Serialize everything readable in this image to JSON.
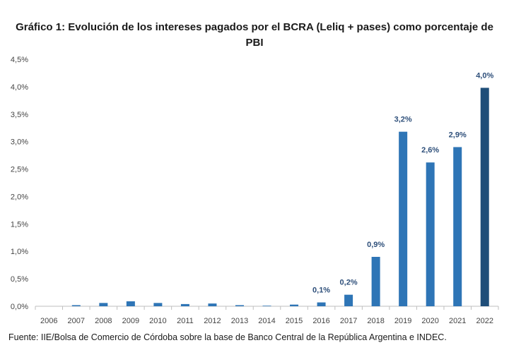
{
  "title_line1": "Gráfico 1: Evolución de los intereses pagados por el BCRA (Leliq + pases) como porcentaje de",
  "title_line2": "PBI",
  "source": "Fuente: IIE/Bolsa de Comercio de Córdoba sobre la base de Banco Central de la República Argentina e INDEC.",
  "colors": {
    "bar": "#2e75b6",
    "bar_highlight": "#1f4e79",
    "label": "#2e4f7a",
    "axis": "#bfbfbf"
  },
  "chart_data": {
    "type": "bar",
    "title": "Gráfico 1: Evolución de los intereses pagados por el BCRA (Leliq + pases) como porcentaje de PBI",
    "xlabel": "",
    "ylabel": "",
    "ylim": [
      0,
      4.5
    ],
    "yticks": [
      "0,0%",
      "0,5%",
      "1,0%",
      "1,5%",
      "2,0%",
      "2,5%",
      "3,0%",
      "3,5%",
      "4,0%",
      "4,5%"
    ],
    "grid": false,
    "categories": [
      "2006",
      "2007",
      "2008",
      "2009",
      "2010",
      "2011",
      "2012",
      "2013",
      "2014",
      "2015",
      "2016",
      "2017",
      "2018",
      "2019",
      "2020",
      "2021",
      "2022"
    ],
    "values": [
      0.0,
      0.02,
      0.06,
      0.09,
      0.06,
      0.04,
      0.05,
      0.02,
      0.01,
      0.03,
      0.07,
      0.21,
      0.9,
      3.18,
      2.62,
      2.9,
      3.98
    ],
    "data_labels": [
      "",
      "",
      "",
      "",
      "",
      "",
      "",
      "",
      "",
      "",
      "0,1%",
      "0,2%",
      "0,9%",
      "3,2%",
      "2,6%",
      "2,9%",
      "4,0%"
    ],
    "highlight_index": 16
  }
}
